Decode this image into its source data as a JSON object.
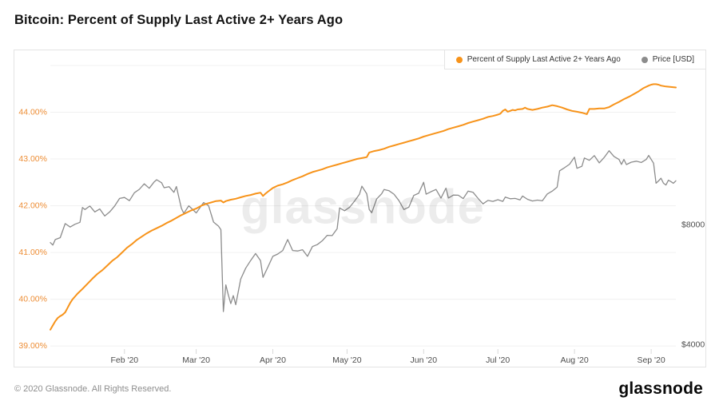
{
  "page": {
    "title": "Bitcoin: Percent of Supply Last Active 2+ Years Ago"
  },
  "legend": {
    "items": [
      {
        "label": "Percent of Supply Last Active 2+ Years Ago",
        "color": "#f7931a"
      },
      {
        "label": "Price [USD]",
        "color": "#8c8c8c"
      }
    ]
  },
  "watermark": {
    "text": "glassnode"
  },
  "footer": {
    "copyright": "© 2020 Glassnode. All Rights Reserved.",
    "logo_text": "glassnode"
  },
  "chart_data": {
    "type": "line",
    "title": "Bitcoin: Percent of Supply Last Active 2+ Years Ago",
    "grid": "horizontal-only",
    "grid_color": "#f0f0f0",
    "legend_position": "top-right",
    "x_axis": {
      "unit": "day of 2020 (Jan 1 = day 0)",
      "start_day": 1,
      "end_day": 254,
      "ticks": [
        {
          "day": 31,
          "label": "Feb '20"
        },
        {
          "day": 60,
          "label": "Mar '20"
        },
        {
          "day": 91,
          "label": "Apr '20"
        },
        {
          "day": 121,
          "label": "May '20"
        },
        {
          "day": 152,
          "label": "Jun '20"
        },
        {
          "day": 182,
          "label": "Jul '20"
        },
        {
          "day": 213,
          "label": "Aug '20"
        },
        {
          "day": 244,
          "label": "Sep '20"
        }
      ]
    },
    "y_left": {
      "scale": "linear",
      "ylim": [
        38.9,
        45.0
      ],
      "grid_values": [
        45,
        44,
        43,
        42,
        41,
        40,
        39
      ],
      "label_color": "#ed8d35",
      "ticks": [
        {
          "value": 44,
          "label": "44.00%"
        },
        {
          "value": 43,
          "label": "43.00%"
        },
        {
          "value": 42,
          "label": "42.00%"
        },
        {
          "value": 41,
          "label": "41.00%"
        },
        {
          "value": 40,
          "label": "40.00%"
        },
        {
          "value": 39,
          "label": "39.00%"
        }
      ]
    },
    "y_right": {
      "scale": "log",
      "ylim": [
        3854,
        20060
      ],
      "label_color": "#4d4d4d",
      "ticks": [
        {
          "value": 8000,
          "label": "$8000"
        },
        {
          "value": 4000,
          "label": "$4000"
        }
      ]
    },
    "series": [
      {
        "name": "Percent of Supply Last Active 2+ Years Ago",
        "axis": "left",
        "color": "#f7931a",
        "width": 2,
        "points": [
          [
            1,
            39.35
          ],
          [
            2,
            39.44
          ],
          [
            3,
            39.53
          ],
          [
            4,
            39.6
          ],
          [
            5,
            39.64
          ],
          [
            6,
            39.67
          ],
          [
            7,
            39.72
          ],
          [
            8,
            39.82
          ],
          [
            9,
            39.92
          ],
          [
            10,
            40.0
          ],
          [
            12,
            40.12
          ],
          [
            14,
            40.22
          ],
          [
            16,
            40.33
          ],
          [
            18,
            40.44
          ],
          [
            20,
            40.54
          ],
          [
            22,
            40.62
          ],
          [
            24,
            40.72
          ],
          [
            26,
            40.82
          ],
          [
            28,
            40.9
          ],
          [
            30,
            41.0
          ],
          [
            32,
            41.1
          ],
          [
            34,
            41.18
          ],
          [
            36,
            41.27
          ],
          [
            38,
            41.34
          ],
          [
            40,
            41.41
          ],
          [
            42,
            41.47
          ],
          [
            44,
            41.52
          ],
          [
            46,
            41.57
          ],
          [
            48,
            41.63
          ],
          [
            50,
            41.68
          ],
          [
            52,
            41.74
          ],
          [
            54,
            41.8
          ],
          [
            56,
            41.85
          ],
          [
            58,
            41.9
          ],
          [
            60,
            41.94
          ],
          [
            62,
            42.0
          ],
          [
            64,
            42.04
          ],
          [
            66,
            42.07
          ],
          [
            68,
            42.1
          ],
          [
            70,
            42.11
          ],
          [
            71,
            42.07
          ],
          [
            72,
            42.1
          ],
          [
            74,
            42.13
          ],
          [
            76,
            42.15
          ],
          [
            78,
            42.18
          ],
          [
            80,
            42.21
          ],
          [
            82,
            42.23
          ],
          [
            84,
            42.26
          ],
          [
            86,
            42.28
          ],
          [
            87,
            42.21
          ],
          [
            88,
            42.26
          ],
          [
            89,
            42.3
          ],
          [
            91,
            42.38
          ],
          [
            93,
            42.43
          ],
          [
            95,
            42.46
          ],
          [
            97,
            42.5
          ],
          [
            99,
            42.55
          ],
          [
            101,
            42.59
          ],
          [
            103,
            42.63
          ],
          [
            105,
            42.68
          ],
          [
            107,
            42.72
          ],
          [
            109,
            42.75
          ],
          [
            111,
            42.78
          ],
          [
            113,
            42.82
          ],
          [
            115,
            42.85
          ],
          [
            117,
            42.88
          ],
          [
            119,
            42.91
          ],
          [
            121,
            42.94
          ],
          [
            123,
            42.97
          ],
          [
            125,
            43.0
          ],
          [
            127,
            43.02
          ],
          [
            129,
            43.04
          ],
          [
            130,
            43.14
          ],
          [
            132,
            43.17
          ],
          [
            134,
            43.19
          ],
          [
            136,
            43.22
          ],
          [
            138,
            43.26
          ],
          [
            140,
            43.29
          ],
          [
            142,
            43.32
          ],
          [
            144,
            43.35
          ],
          [
            146,
            43.38
          ],
          [
            148,
            43.41
          ],
          [
            150,
            43.44
          ],
          [
            152,
            43.48
          ],
          [
            154,
            43.51
          ],
          [
            156,
            43.54
          ],
          [
            158,
            43.57
          ],
          [
            160,
            43.6
          ],
          [
            162,
            43.64
          ],
          [
            164,
            43.67
          ],
          [
            166,
            43.7
          ],
          [
            168,
            43.73
          ],
          [
            170,
            43.77
          ],
          [
            172,
            43.8
          ],
          [
            174,
            43.83
          ],
          [
            176,
            43.86
          ],
          [
            178,
            43.9
          ],
          [
            180,
            43.92
          ],
          [
            182,
            43.95
          ],
          [
            183,
            43.97
          ],
          [
            184,
            44.03
          ],
          [
            185,
            44.06
          ],
          [
            186,
            44.01
          ],
          [
            187,
            44.03
          ],
          [
            188,
            44.05
          ],
          [
            189,
            44.04
          ],
          [
            190,
            44.06
          ],
          [
            192,
            44.07
          ],
          [
            193,
            44.1
          ],
          [
            194,
            44.07
          ],
          [
            196,
            44.05
          ],
          [
            198,
            44.07
          ],
          [
            200,
            44.1
          ],
          [
            202,
            44.12
          ],
          [
            204,
            44.15
          ],
          [
            206,
            44.13
          ],
          [
            208,
            44.1
          ],
          [
            210,
            44.06
          ],
          [
            212,
            44.03
          ],
          [
            214,
            44.01
          ],
          [
            216,
            43.99
          ],
          [
            218,
            43.96
          ],
          [
            219,
            44.07
          ],
          [
            221,
            44.07
          ],
          [
            223,
            44.08
          ],
          [
            225,
            44.08
          ],
          [
            227,
            44.11
          ],
          [
            229,
            44.17
          ],
          [
            231,
            44.22
          ],
          [
            233,
            44.28
          ],
          [
            235,
            44.33
          ],
          [
            237,
            44.39
          ],
          [
            239,
            44.45
          ],
          [
            241,
            44.52
          ],
          [
            243,
            44.57
          ],
          [
            244,
            44.59
          ],
          [
            245,
            44.6
          ],
          [
            246,
            44.6
          ],
          [
            247,
            44.59
          ],
          [
            248,
            44.57
          ],
          [
            250,
            44.55
          ],
          [
            252,
            44.54
          ],
          [
            254,
            44.53
          ]
        ]
      },
      {
        "name": "Price [USD]",
        "axis": "right",
        "color": "#8c8c8c",
        "width": 1.3,
        "points": [
          [
            1,
            7200
          ],
          [
            2,
            7100
          ],
          [
            3,
            7330
          ],
          [
            5,
            7410
          ],
          [
            7,
            8040
          ],
          [
            9,
            7880
          ],
          [
            11,
            8010
          ],
          [
            13,
            8100
          ],
          [
            14,
            8820
          ],
          [
            15,
            8720
          ],
          [
            17,
            8900
          ],
          [
            19,
            8600
          ],
          [
            21,
            8750
          ],
          [
            23,
            8400
          ],
          [
            25,
            8600
          ],
          [
            27,
            8900
          ],
          [
            29,
            9300
          ],
          [
            31,
            9350
          ],
          [
            33,
            9180
          ],
          [
            35,
            9610
          ],
          [
            37,
            9800
          ],
          [
            39,
            10120
          ],
          [
            41,
            9860
          ],
          [
            43,
            10230
          ],
          [
            44,
            10360
          ],
          [
            46,
            10180
          ],
          [
            47,
            9890
          ],
          [
            49,
            9950
          ],
          [
            51,
            9630
          ],
          [
            52,
            9960
          ],
          [
            54,
            8790
          ],
          [
            55,
            8530
          ],
          [
            57,
            8910
          ],
          [
            59,
            8670
          ],
          [
            60,
            8550
          ],
          [
            62,
            8900
          ],
          [
            63,
            9080
          ],
          [
            65,
            8910
          ],
          [
            67,
            8110
          ],
          [
            69,
            7920
          ],
          [
            70,
            7760
          ],
          [
            71,
            4830
          ],
          [
            72,
            5640
          ],
          [
            73,
            5320
          ],
          [
            74,
            5060
          ],
          [
            75,
            5300
          ],
          [
            76,
            5030
          ],
          [
            78,
            5830
          ],
          [
            80,
            6210
          ],
          [
            82,
            6490
          ],
          [
            84,
            6760
          ],
          [
            86,
            6490
          ],
          [
            87,
            5890
          ],
          [
            89,
            6250
          ],
          [
            91,
            6650
          ],
          [
            93,
            6740
          ],
          [
            95,
            6880
          ],
          [
            97,
            7330
          ],
          [
            99,
            6880
          ],
          [
            101,
            6860
          ],
          [
            103,
            6910
          ],
          [
            105,
            6650
          ],
          [
            107,
            7040
          ],
          [
            109,
            7120
          ],
          [
            111,
            7280
          ],
          [
            113,
            7510
          ],
          [
            115,
            7500
          ],
          [
            117,
            7800
          ],
          [
            118,
            8800
          ],
          [
            120,
            8660
          ],
          [
            122,
            8830
          ],
          [
            124,
            9150
          ],
          [
            126,
            9520
          ],
          [
            127,
            9980
          ],
          [
            129,
            9550
          ],
          [
            130,
            8720
          ],
          [
            131,
            8560
          ],
          [
            133,
            9270
          ],
          [
            135,
            9550
          ],
          [
            136,
            9790
          ],
          [
            138,
            9720
          ],
          [
            140,
            9530
          ],
          [
            142,
            9180
          ],
          [
            144,
            8720
          ],
          [
            146,
            8840
          ],
          [
            148,
            9460
          ],
          [
            150,
            9580
          ],
          [
            152,
            10210
          ],
          [
            153,
            9530
          ],
          [
            155,
            9670
          ],
          [
            157,
            9790
          ],
          [
            159,
            9320
          ],
          [
            161,
            9870
          ],
          [
            162,
            9320
          ],
          [
            164,
            9480
          ],
          [
            166,
            9470
          ],
          [
            168,
            9290
          ],
          [
            170,
            9700
          ],
          [
            172,
            9630
          ],
          [
            174,
            9300
          ],
          [
            176,
            9010
          ],
          [
            178,
            9190
          ],
          [
            180,
            9140
          ],
          [
            182,
            9230
          ],
          [
            184,
            9140
          ],
          [
            185,
            9370
          ],
          [
            187,
            9280
          ],
          [
            189,
            9300
          ],
          [
            191,
            9220
          ],
          [
            192,
            9430
          ],
          [
            194,
            9250
          ],
          [
            196,
            9160
          ],
          [
            198,
            9210
          ],
          [
            200,
            9170
          ],
          [
            202,
            9540
          ],
          [
            204,
            9700
          ],
          [
            206,
            9930
          ],
          [
            207,
            10910
          ],
          [
            209,
            11110
          ],
          [
            211,
            11330
          ],
          [
            213,
            11800
          ],
          [
            214,
            11070
          ],
          [
            216,
            11200
          ],
          [
            217,
            11750
          ],
          [
            219,
            11590
          ],
          [
            221,
            11910
          ],
          [
            223,
            11420
          ],
          [
            225,
            11780
          ],
          [
            227,
            12250
          ],
          [
            229,
            11850
          ],
          [
            231,
            11650
          ],
          [
            232,
            11320
          ],
          [
            233,
            11650
          ],
          [
            234,
            11310
          ],
          [
            236,
            11470
          ],
          [
            238,
            11530
          ],
          [
            240,
            11450
          ],
          [
            242,
            11650
          ],
          [
            243,
            11920
          ],
          [
            245,
            11400
          ],
          [
            246,
            10150
          ],
          [
            247,
            10290
          ],
          [
            248,
            10450
          ],
          [
            249,
            10150
          ],
          [
            250,
            10050
          ],
          [
            251,
            10330
          ],
          [
            252,
            10250
          ],
          [
            253,
            10150
          ],
          [
            254,
            10300
          ]
        ]
      }
    ]
  }
}
